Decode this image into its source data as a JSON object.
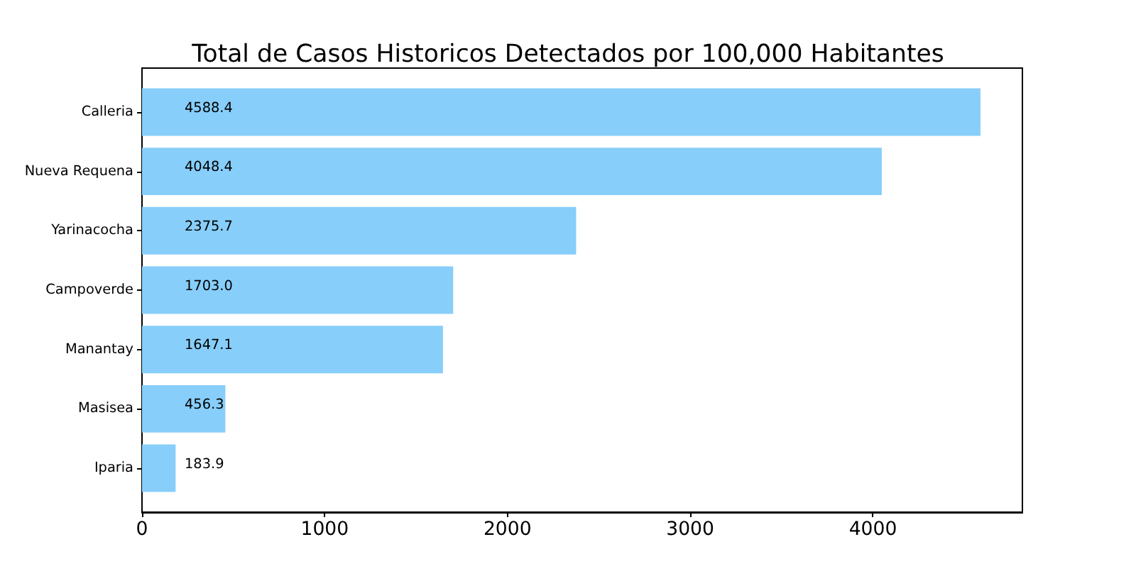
{
  "chart_data": {
    "type": "bar",
    "orientation": "horizontal",
    "title": "Total de Casos Historicos Detectados por 100,000 Habitantes",
    "categories": [
      "Calleria",
      "Nueva Requena",
      "Yarinacocha",
      "Campoverde",
      "Manantay",
      "Masisea",
      "Iparia"
    ],
    "values": [
      4588.4,
      4048.4,
      2375.7,
      1703.0,
      1647.1,
      456.3,
      183.9
    ],
    "value_labels": [
      "4588.4",
      "4048.4",
      "2375.7",
      "1703.0",
      "1647.1",
      "456.3",
      "183.9"
    ],
    "color": "#87cefa",
    "xlim": [
      0,
      4818
    ],
    "xticks": [
      0,
      1000,
      2000,
      3000,
      4000
    ],
    "grid": false
  }
}
